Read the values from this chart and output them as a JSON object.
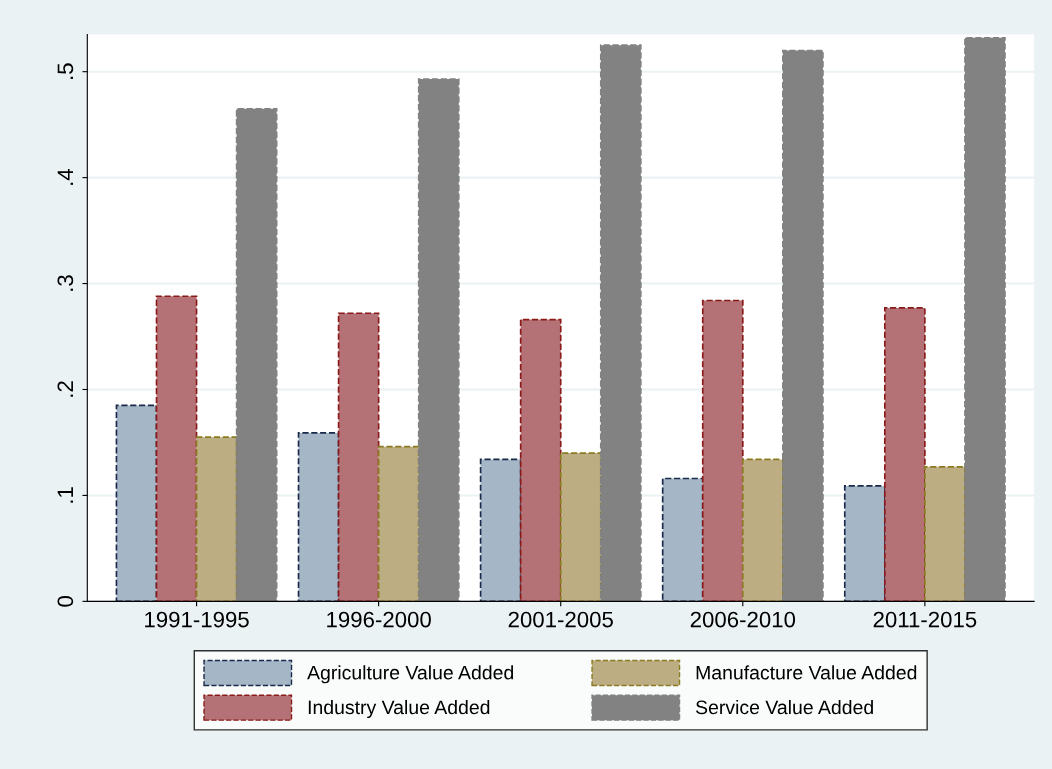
{
  "chart_data": {
    "type": "bar",
    "categories": [
      "1991-1995",
      "1996-2000",
      "2001-2005",
      "2006-2010",
      "2011-2015"
    ],
    "series": [
      {
        "name": "Agriculture Value Added",
        "color": "#a5b6c6",
        "values": [
          0.185,
          0.159,
          0.134,
          0.116,
          0.109
        ]
      },
      {
        "name": "Industry Value Added",
        "color": "#b47276",
        "values": [
          0.288,
          0.272,
          0.266,
          0.284,
          0.277
        ]
      },
      {
        "name": "Manufacture Value Added",
        "color": "#bcae82",
        "values": [
          0.155,
          0.146,
          0.14,
          0.134,
          0.127
        ]
      },
      {
        "name": "Service Value Added",
        "color": "#828282",
        "values": [
          0.465,
          0.493,
          0.525,
          0.52,
          0.532
        ]
      }
    ],
    "ylim": [
      0,
      0.535
    ],
    "yticks": [
      0,
      {
        "value": 0.1,
        "label": ".1"
      },
      {
        "value": 0.2,
        "label": ".2"
      },
      {
        "value": 0.3,
        "label": ".3"
      },
      {
        "value": 0.4,
        "label": ".4"
      },
      {
        "value": 0.5,
        "label": ".5"
      }
    ],
    "grid": "y",
    "legend": "bottom"
  }
}
